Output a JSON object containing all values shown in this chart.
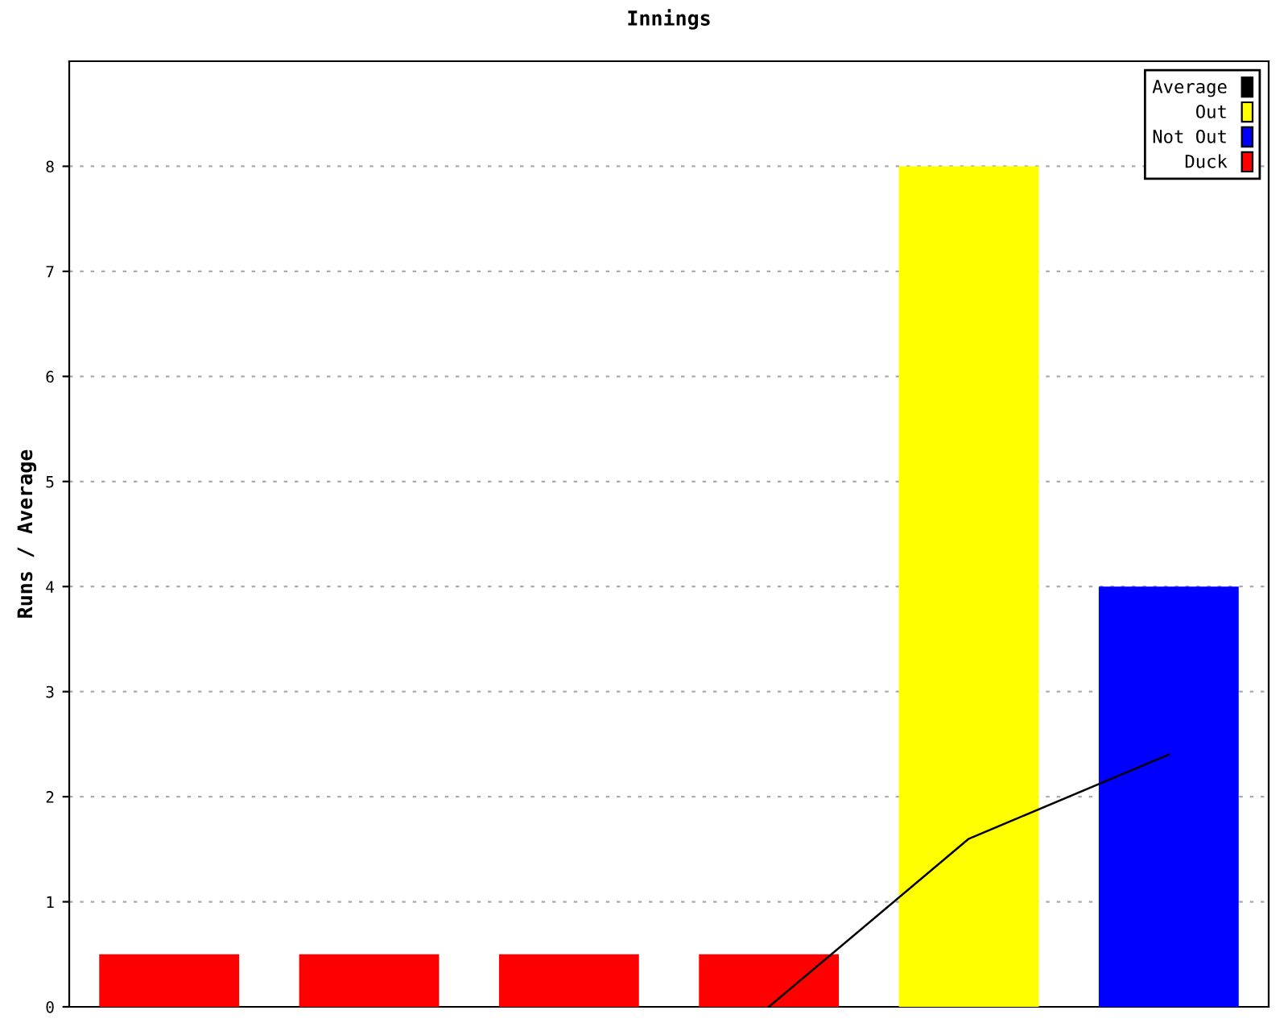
{
  "chart_data": {
    "type": "bar",
    "title": "Innings",
    "ylabel": "Runs / Average",
    "categories": [
      null,
      null,
      null,
      null,
      null,
      null
    ],
    "series": [
      {
        "name": "Average",
        "type": "line",
        "color": "#000000",
        "values": [
          null,
          null,
          null,
          0,
          1.6,
          2.4
        ]
      },
      {
        "name": "Out",
        "color": "#ffff00",
        "values": [
          null,
          null,
          null,
          null,
          8,
          null
        ]
      },
      {
        "name": "Not Out",
        "color": "#0000ff",
        "values": [
          null,
          null,
          null,
          null,
          null,
          4
        ]
      },
      {
        "name": "Duck",
        "color": "#ff0000",
        "values": [
          0.5,
          0.5,
          0.5,
          0.5,
          null,
          null
        ]
      }
    ],
    "ylim": [
      0,
      9
    ],
    "yticks": [
      0,
      1,
      2,
      3,
      4,
      5,
      6,
      7,
      8
    ],
    "grid": "y",
    "legend": "top right",
    "marker": "none",
    "line_style": "solid"
  }
}
